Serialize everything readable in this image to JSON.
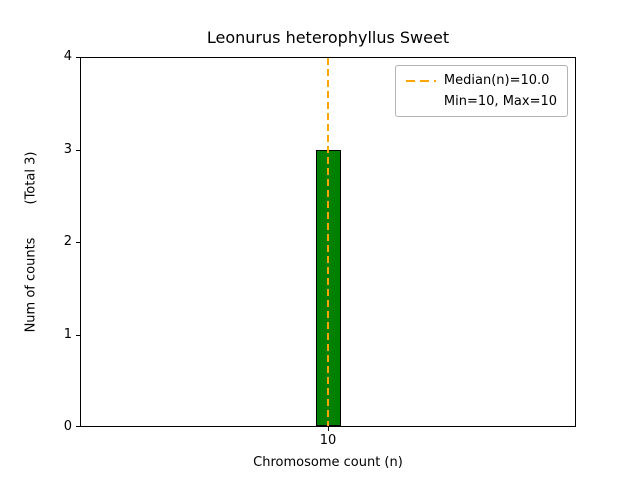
{
  "chart_data": {
    "type": "bar",
    "title": "Leonurus heterophyllus Sweet",
    "xlabel": "Chromosome count (n)",
    "ylabel": "Num of counts        (Total 3)",
    "total_label": "(Total 3)",
    "categories": [
      "10"
    ],
    "values": [
      3
    ],
    "ylim": [
      0,
      4
    ],
    "yticks": [
      "0",
      "1",
      "2",
      "3",
      "4"
    ],
    "bar_color": "#008000",
    "bar_edge_color": "#000000",
    "median_line": {
      "x": 10,
      "value": 10.0,
      "color": "#FFA500",
      "style": "dashed"
    },
    "legend": {
      "position": "upper right",
      "entries": [
        {
          "symbol": "dashed-line",
          "label": "Median(n)=10.0"
        },
        {
          "symbol": "none",
          "label": "Min=10, Max=10"
        }
      ]
    },
    "grid": false
  }
}
